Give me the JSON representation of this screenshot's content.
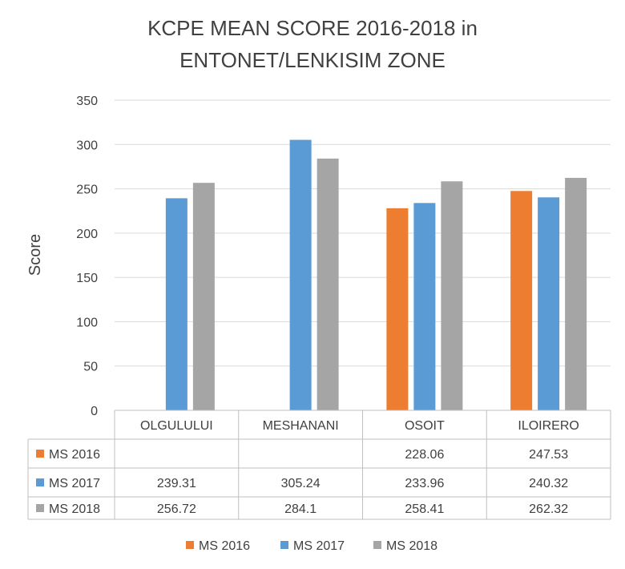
{
  "chart_data": {
    "type": "bar",
    "title_lines": [
      "KCPE MEAN SCORE 2016-2018 in",
      "ENTONET/LENKISIM ZONE"
    ],
    "xlabel": "",
    "ylabel": "Score",
    "ylim": [
      0,
      350
    ],
    "yticks": [
      "0",
      "50",
      "100",
      "150",
      "200",
      "250",
      "300",
      "350"
    ],
    "grid": true,
    "legend_position": "bottom",
    "categories": [
      "OLGULULUI",
      "MESHANANI",
      "OSOIT",
      "ILOIRERO"
    ],
    "series": [
      {
        "name": "MS 2016",
        "color": "#ED7D31",
        "values": [
          null,
          null,
          228.06,
          247.53
        ],
        "labels": [
          "",
          "",
          "228.06",
          "247.53"
        ]
      },
      {
        "name": "MS 2017",
        "color": "#5B9BD5",
        "values": [
          239.31,
          305.24,
          233.96,
          240.32
        ],
        "labels": [
          "239.31",
          "305.24",
          "233.96",
          "240.32"
        ]
      },
      {
        "name": "MS 2018",
        "color": "#A5A5A5",
        "values": [
          256.72,
          284.1,
          258.41,
          262.32
        ],
        "labels": [
          "256.72",
          "284.1",
          "258.41",
          "262.32"
        ]
      }
    ]
  }
}
